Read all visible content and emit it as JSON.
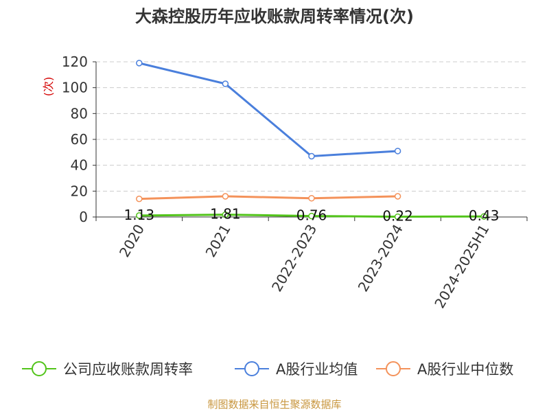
{
  "chart_data": {
    "type": "line",
    "title": "大森控股历年应收账款周转率情况(次)",
    "ylabel": "(次)",
    "categories": [
      "2020",
      "2021",
      "2022-2023",
      "2023-2024",
      "2024-2025H1"
    ],
    "ylim": [
      0,
      120
    ],
    "yticks": [
      0,
      20,
      40,
      60,
      80,
      100,
      120
    ],
    "grid": true,
    "legend_position": "bottom",
    "series": [
      {
        "name": "公司应收账款周转率",
        "color": "#52c41a",
        "values": [
          1.13,
          1.81,
          0.76,
          0.22,
          0.43
        ],
        "labels": [
          "1.13",
          "1.81",
          "0.76",
          "0.22",
          "0.43"
        ]
      },
      {
        "name": "A股行业均值",
        "color": "#4a7fdc",
        "values": [
          119,
          103,
          47,
          51,
          null
        ]
      },
      {
        "name": "A股行业中位数",
        "color": "#f4925a",
        "values": [
          14,
          16,
          14.5,
          16,
          null
        ]
      }
    ]
  },
  "source": "制图数据来自恒生聚源数据库"
}
